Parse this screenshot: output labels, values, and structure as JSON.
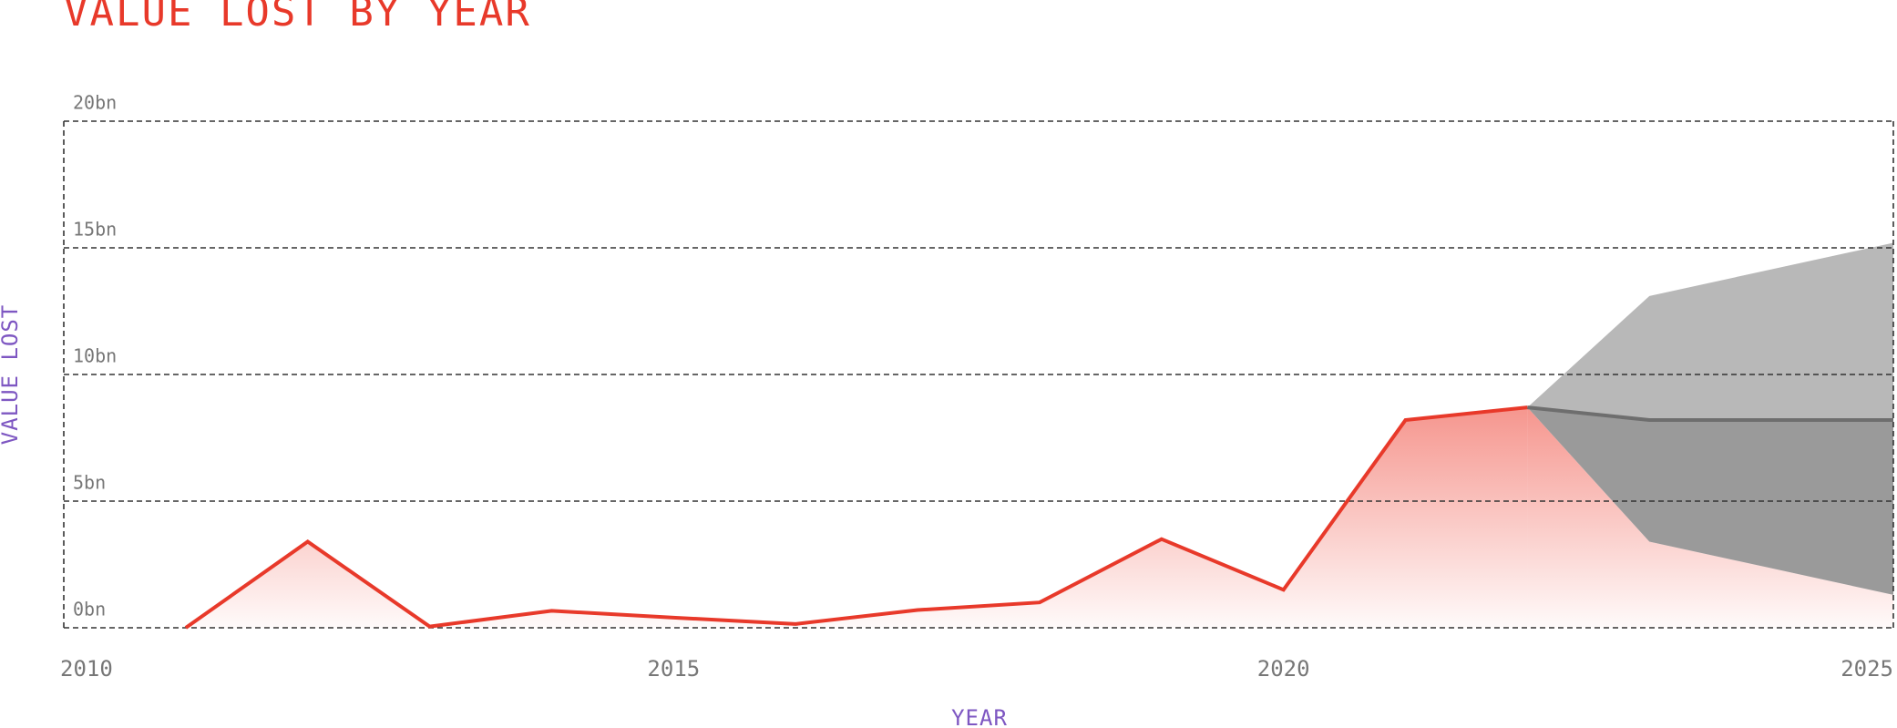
{
  "chart_data": {
    "type": "line",
    "title": "VALUE LOST BY YEAR",
    "x_label": "YEAR",
    "y_label": "VALUE LOST",
    "x": [
      2011,
      2012,
      2013,
      2014,
      2015,
      2016,
      2017,
      2018,
      2019,
      2020,
      2021,
      2022,
      2023,
      2024,
      2025
    ],
    "series": [
      {
        "color": "#e8392a",
        "values": [
          0,
          3.4,
          0.05,
          0.67,
          0.4,
          0.15,
          0.7,
          1.0,
          3.5,
          1.5,
          8.2,
          8.7,
          null,
          null,
          null
        ]
      },
      {
        "color": "#6e6e6e",
        "values": [
          null,
          null,
          null,
          null,
          null,
          null,
          null,
          null,
          null,
          null,
          null,
          8.7,
          8.2,
          8.2,
          8.2
        ]
      }
    ],
    "band": {
      "color": "#b8b8b8",
      "lower": [
        null,
        null,
        null,
        null,
        null,
        null,
        null,
        null,
        null,
        null,
        null,
        8.7,
        3.4,
        2.35,
        1.3
      ],
      "upper": [
        null,
        null,
        null,
        null,
        null,
        null,
        null,
        null,
        null,
        null,
        null,
        8.7,
        13.1,
        14.15,
        15.2
      ]
    },
    "xlim": [
      2010,
      2025
    ],
    "ylim": [
      0,
      20
    ],
    "xticks": [
      2010,
      2015,
      2020,
      2025
    ],
    "yticks": [
      {
        "value": 0,
        "label": "0bn"
      },
      {
        "value": 5,
        "label": "5bn"
      },
      {
        "value": 10,
        "label": "10bn"
      },
      {
        "value": 15,
        "label": "15bn"
      },
      {
        "value": 20,
        "label": "20bn"
      }
    ],
    "grid": true
  }
}
